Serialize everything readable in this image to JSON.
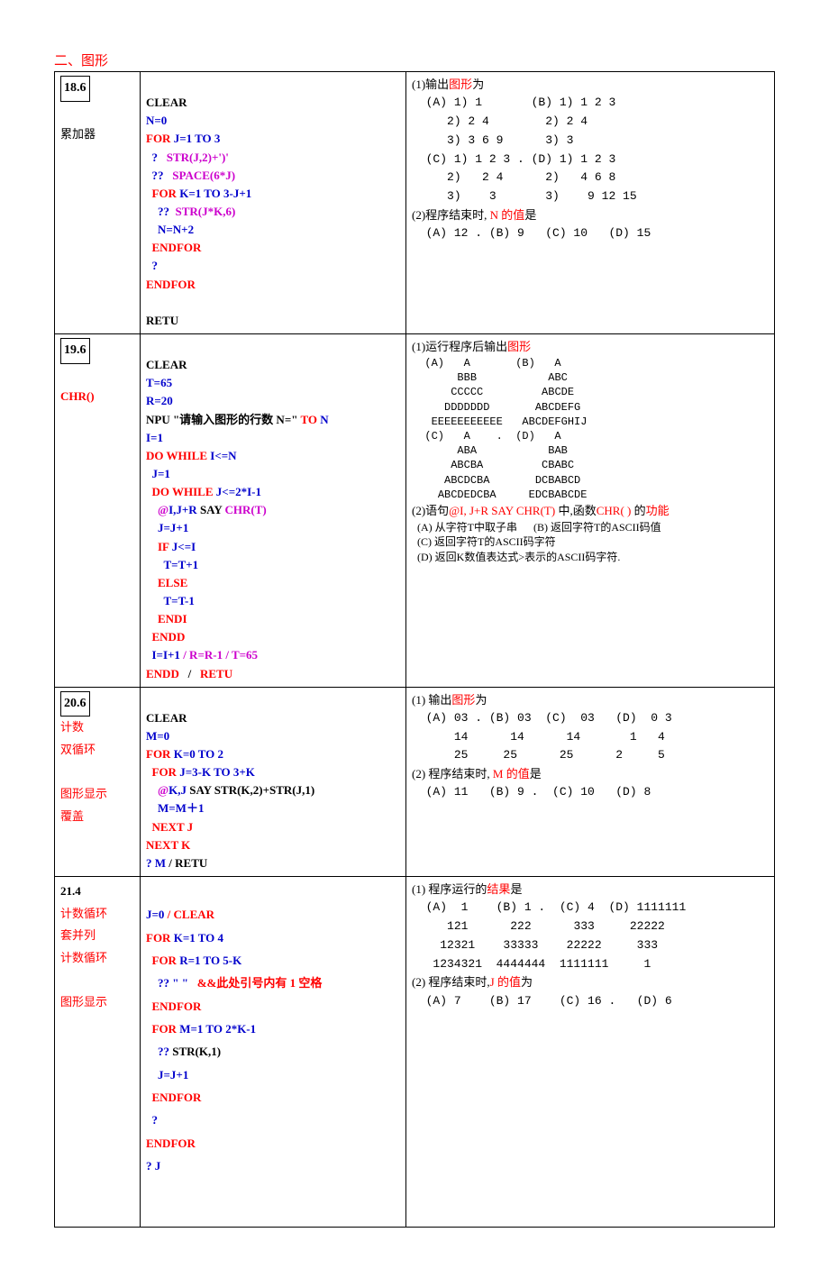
{
  "section_title": "二、图形",
  "colors": {
    "red": "#ff0000",
    "blue": "#0000cc",
    "pink": "#cc00cc",
    "navy": "#000088",
    "black": "#000000"
  },
  "rows": [
    {
      "qnum": "18.6",
      "left_labels": [
        "",
        "",
        "累加器"
      ],
      "left_red": [],
      "q1_label": "(1)输出",
      "q1_red": "图形",
      "q1_suffix": "为",
      "q1_options": "  (A) 1) 1       (B) 1) 1 2 3\n     2) 2 4        2) 2 4\n     3) 3 6 9      3) 3\n  (C) 1) 1 2 3 . (D) 1) 1 2 3\n     2)   2 4      2)   4 6 8\n     3)    3       3)    9 12 15",
      "q2_label": "(2)程序结束时, ",
      "q2_red": "N 的值",
      "q2_suffix": "是",
      "q2_options": "  (A) 12 . (B) 9   (C) 10   (D) 15"
    },
    {
      "qnum": "19.6",
      "left_labels": [
        "",
        "",
        "CHR()"
      ],
      "q1_label": "(1)运行程序后输出",
      "q1_red": "图形",
      "q1_options_tight": "  (A)   A       (B)   A\n       BBB           ABC\n      CCCCC         ABCDE\n     DDDDDDD       ABCDEFG\n   EEEEEEEEEEE   ABCDEFGHIJ\n  (C)   A    .  (D)   A\n       ABA           BAB\n      ABCBA         CBABC\n     ABCDCBA       DCBABCD\n    ABCDEDCBA     EDCBABCDE",
      "q2_label": "(2)语句",
      "q2_code": "@I, J+R SAY CHR(T)",
      "q2_mid": " 中,函数",
      "q2_code2": "CHR( )",
      "q2_suffix": " 的",
      "q2_red": "功能",
      "q2_options_cn": "  (A) 从字符T中取子串      (B) 返回字符T的ASCII码值\n  (C) 返回字符T的ASCII码字符\n  (D) 返回K数值表达式>表示的ASCII码字符."
    },
    {
      "qnum": "20.6",
      "left_labels_red": [
        "计数",
        "双循环",
        "",
        "图形显示",
        " 覆盖"
      ],
      "q1_label": "(1) 输出",
      "q1_red": "图形",
      "q1_suffix": "为",
      "q1_options": "  (A) 03 . (B) 03  (C)  03   (D)  0 3\n      14      14      14       1   4\n      25     25      25      2     5",
      "q2_label": "(2) 程序结束时, ",
      "q2_red": "M 的值",
      "q2_suffix": "是",
      "q2_options": "  (A) 11   (B) 9 .  (C) 10   (D) 8"
    },
    {
      "qnum": "21.4",
      "left_labels_red": [
        "计数循环",
        "  套并列",
        "计数循环",
        "",
        "图形显示"
      ],
      "q1_label": "(1) 程序运行的",
      "q1_red": "结果",
      "q1_suffix": "是",
      "q1_options": "  (A)  1    (B) 1 .  (C) 4  (D) 1111111\n     121      222      333     22222\n    12321    33333    22222     333\n   1234321  4444444  1111111     1",
      "q2_label": "(2) 程序结束时,",
      "q2_red": "J 的值",
      "q2_suffix": "为",
      "q2_options": "  (A) 7    (B) 17    (C) 16 .   (D) 6"
    }
  ],
  "code_186": {
    "l1": "CLEAR",
    "l2": "N=0",
    "l3a": "FOR",
    "l3b": " J=1 TO 3",
    "l4a": "  ?   ",
    "l4b": "STR(J,2)+')'",
    "l5a": "  ??   ",
    "l5b": "SPACE(6*J)",
    "l6a": "  FOR",
    "l6b": " K=1 TO 3-J+1",
    "l7a": "    ??  ",
    "l7b": "STR(J*K,6)",
    "l8": "    N=N+2",
    "l9": "  ENDFOR",
    "l10": "  ?",
    "l11": "ENDFOR",
    "l12": "RETU"
  },
  "code_196": {
    "l1": "CLEAR",
    "l2": "T=65",
    "l3": "R=20",
    "l4a": "NPU ",
    "l4b": "\"请输入图形的行数 N=\"",
    "l4c": " TO",
    "l4d": " N",
    "l5": "I=1",
    "l6a": "DO WHILE",
    "l6b": " I<=N",
    "l7": "  J=1",
    "l8a": "  DO WHILE",
    "l8b": " J<=2*I-1",
    "l9a": "    @",
    "l9b": "I,J+R ",
    "l9c": "SAY ",
    "l9d": "CHR(T)",
    "l10": "    J=J+1",
    "l11a": "    IF",
    "l11b": " J<=I",
    "l12": "      T=T+1",
    "l13": "    ELSE",
    "l14": "      T=T-1",
    "l15": "    ENDI",
    "l16": "  ENDD",
    "l17a": "  I=I+1 ",
    "l17b": "/ R=R-1 / T=65",
    "l18a": "ENDD",
    "l18b": "   /   ",
    "l18c": "RETU"
  },
  "code_206": {
    "l1": "CLEAR",
    "l2": "M=0",
    "l3a": "FOR",
    "l3b": " K=0 TO 2",
    "l4a": "  FOR",
    "l4b": " J=3-K TO 3+K",
    "l5a": "    @",
    "l5b": "K,J ",
    "l5c": "SAY STR(K,2)+STR(J,1)",
    "l6": "    M=M＋1",
    "l7": "  NEXT J",
    "l8": "NEXT K",
    "l9a": "? M",
    "l9b": " / ",
    "l9c": "RETU"
  },
  "code_214": {
    "l1a": "J=0 ",
    "l1b": "/ ",
    "l1c": "CLEAR",
    "l2a": "FOR",
    "l2b": " K=1 TO 4",
    "l3a": "  FOR",
    "l3b": " R=1 TO 5-K",
    "l4a": "    ?? \" \"   ",
    "l4b": "&&此处引号内有 1 空格",
    "l5": "  ENDFOR",
    "l6a": "  FOR",
    "l6b": " M=1 TO 2*K-1",
    "l7a": "    ?? ",
    "l7b": "STR(K,1)",
    "l8": "    J=J+1",
    "l9": "  ENDFOR",
    "l10": "  ?",
    "l11": "ENDFOR",
    "l12": "? J"
  }
}
